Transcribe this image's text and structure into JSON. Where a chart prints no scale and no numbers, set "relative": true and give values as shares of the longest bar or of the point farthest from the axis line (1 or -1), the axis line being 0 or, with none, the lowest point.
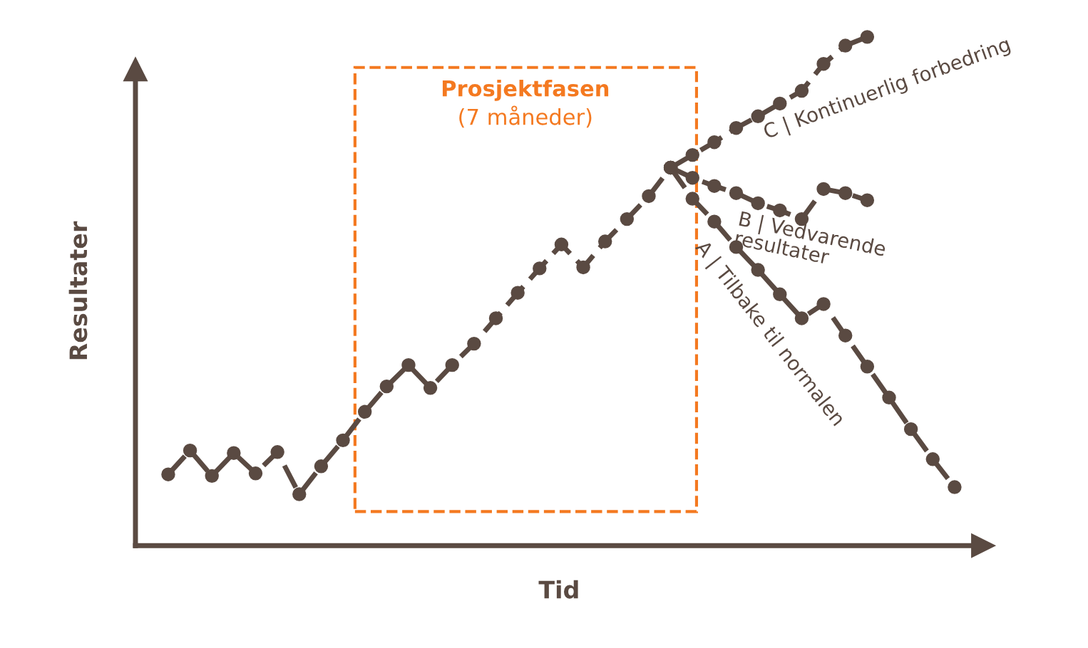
{
  "chart_data": {
    "type": "line",
    "relative": true,
    "xlabel": "Tid",
    "ylabel": "Resultater",
    "marker": "circle",
    "line_style": "dashed",
    "categories": [
      null,
      null,
      null,
      null,
      null,
      null,
      null,
      null,
      null,
      null,
      null,
      null,
      null,
      null,
      null,
      null,
      null,
      null,
      null,
      null,
      null,
      null,
      null,
      null,
      null,
      null,
      null,
      null,
      null,
      null,
      null,
      null,
      null,
      null,
      null,
      null,
      null
    ],
    "series": [
      {
        "color": "#5a4a42",
        "values": [
          0.14,
          0.187,
          0.137,
          0.182,
          0.142,
          0.184,
          0.101,
          0.156,
          0.207,
          0.263,
          0.313,
          0.355,
          0.31,
          0.355,
          0.397,
          0.447,
          0.497,
          0.545,
          0.592,
          0.547,
          0.598,
          0.642,
          0.687,
          0.743,
          null,
          null,
          null,
          null,
          null,
          null,
          null,
          null,
          null,
          null,
          null,
          null,
          null
        ]
      },
      {
        "name": "C | Kontinuerlig forbedring",
        "color": "#5a4a42",
        "values": [
          null,
          null,
          null,
          null,
          null,
          null,
          null,
          null,
          null,
          null,
          null,
          null,
          null,
          null,
          null,
          null,
          null,
          null,
          null,
          null,
          null,
          null,
          null,
          0.743,
          0.768,
          0.793,
          0.821,
          0.844,
          0.869,
          0.894,
          0.947,
          0.983,
          1.0,
          null,
          null,
          null,
          null
        ]
      },
      {
        "name": "B | Vedvarende\nresultater",
        "color": "#5a4a42",
        "values": [
          null,
          null,
          null,
          null,
          null,
          null,
          null,
          null,
          null,
          null,
          null,
          null,
          null,
          null,
          null,
          null,
          null,
          null,
          null,
          null,
          null,
          null,
          null,
          0.743,
          0.723,
          0.707,
          0.693,
          0.673,
          0.659,
          0.642,
          0.701,
          0.693,
          0.679,
          null,
          null,
          null,
          null
        ]
      },
      {
        "name": "A | Tilbake til normalen",
        "color": "#5a4a42",
        "values": [
          null,
          null,
          null,
          null,
          null,
          null,
          null,
          null,
          null,
          null,
          null,
          null,
          null,
          null,
          null,
          null,
          null,
          null,
          null,
          null,
          null,
          null,
          null,
          0.743,
          0.682,
          0.637,
          0.587,
          0.542,
          0.494,
          0.447,
          0.475,
          0.413,
          0.352,
          0.291,
          0.229,
          0.17,
          0.115
        ]
      }
    ],
    "annotations": [
      "Prosjektfasen",
      "(7 måneder)"
    ]
  }
}
